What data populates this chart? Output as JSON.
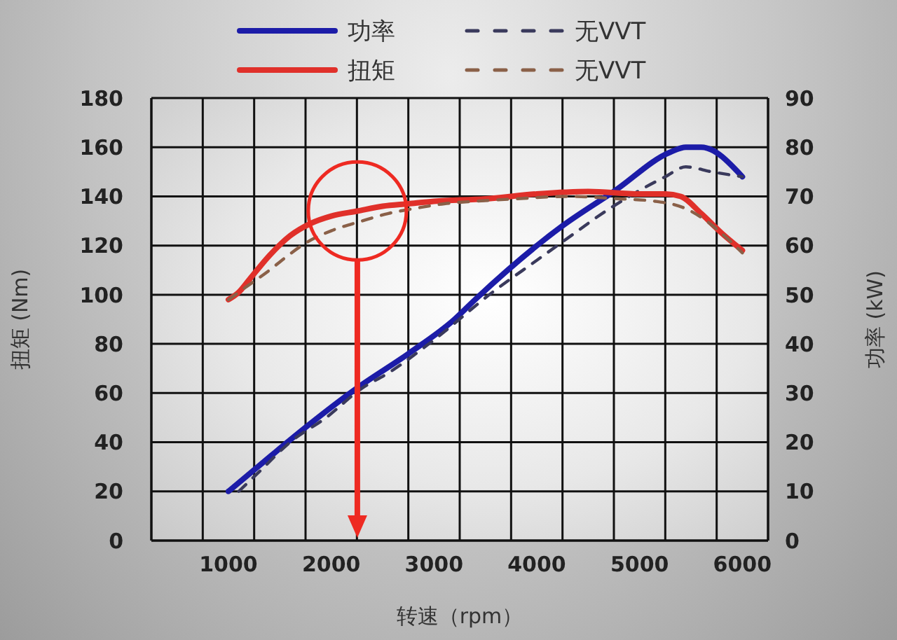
{
  "chart_data": {
    "type": "line",
    "xlabel": "转速（rpm）",
    "ylabel": "扭矩 (Nm)",
    "y2label": "功率 (kW)",
    "xlim": [
      250,
      6250
    ],
    "xticks": [
      {
        "value": 250,
        "label": null
      },
      {
        "value": 750,
        "label": null
      },
      1000,
      {
        "value": 1250,
        "label": null
      },
      {
        "value": 1750,
        "label": null
      },
      2000,
      {
        "value": 2250,
        "label": null
      },
      {
        "value": 2750,
        "label": null
      },
      3000,
      {
        "value": 3250,
        "label": null
      },
      {
        "value": 3750,
        "label": null
      },
      4000,
      {
        "value": 4250,
        "label": null
      },
      {
        "value": 4750,
        "label": null
      },
      5000,
      {
        "value": 5250,
        "label": null
      },
      {
        "value": 5750,
        "label": null
      },
      6000,
      {
        "value": 6250,
        "label": null
      }
    ],
    "ylim": [
      0,
      180
    ],
    "yticks": [
      0,
      20,
      40,
      60,
      80,
      100,
      120,
      140,
      160,
      180
    ],
    "y2lim": [
      0,
      90
    ],
    "y2ticks": [
      0,
      10,
      20,
      30,
      40,
      50,
      60,
      70,
      80,
      90
    ],
    "grid": true,
    "legend": "top",
    "series": [
      {
        "name": "功率",
        "color": "#1c1ca8",
        "axis": "y2",
        "line_style": "solid",
        "x": [
          1000,
          1400,
          1750,
          2250,
          2750,
          3200,
          3400,
          4250,
          4750,
          5300,
          5450,
          5600,
          6000
        ],
        "values": [
          10,
          17,
          23,
          31,
          38,
          45,
          49,
          64,
          71,
          79,
          80,
          80,
          74
        ]
      },
      {
        "name": "无VVT",
        "color": "#3a3a5c",
        "axis": "y2",
        "line_style": "dashed",
        "x": [
          1100,
          1300,
          1600,
          1950,
          2300,
          2550,
          2950,
          3600,
          4000,
          4400,
          4600,
          4900,
          5250,
          5450,
          5700,
          6000
        ],
        "values": [
          10,
          14,
          20,
          25,
          31,
          34,
          40,
          51,
          57,
          63,
          66,
          70,
          74,
          76,
          75,
          74
        ]
      },
      {
        "name": "扭矩",
        "color": "#e0302a",
        "axis": "y",
        "line_style": "solid",
        "x": [
          1000,
          1100,
          1200,
          1400,
          1600,
          1800,
          2000,
          2250,
          2500,
          2750,
          3000,
          3500,
          4000,
          4500,
          5000,
          5250,
          5400,
          5600,
          5800,
          6000
        ],
        "values": [
          98,
          101,
          106,
          116,
          124,
          129,
          132,
          134,
          136,
          137,
          138,
          139,
          141,
          142,
          141,
          141,
          140,
          133,
          125,
          118
        ]
      },
      {
        "name": "无VVT",
        "color": "#8a6048",
        "axis": "y",
        "line_style": "dashed",
        "x": [
          1000,
          1200,
          1400,
          1550,
          1750,
          2000,
          2300,
          2550,
          2800,
          3100,
          3400,
          3800,
          4300,
          4800,
          5150,
          5450,
          5650,
          5850,
          6000
        ],
        "values": [
          98,
          104,
          110,
          115,
          121,
          126,
          130,
          133,
          135,
          137,
          138,
          139,
          140,
          139,
          138,
          135,
          130,
          123,
          117
        ]
      }
    ]
  }
}
